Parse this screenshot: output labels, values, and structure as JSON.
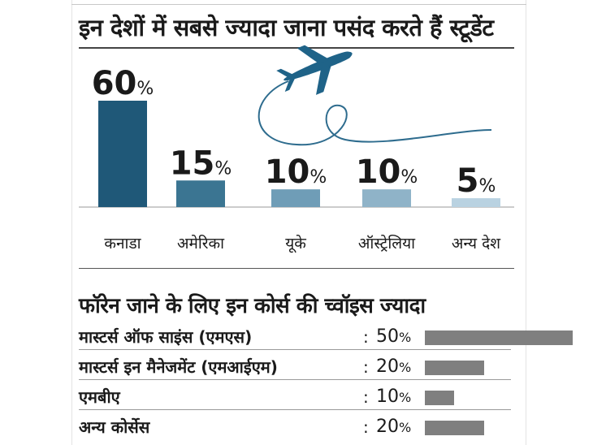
{
  "title": "इन देशों में सबसे ज्यादा जाना पसंद करते हैं स्टूडेंट",
  "subtitle": "फॉरेन जाने के लिए इन कोर्स की च्वॉइस ज्यादा",
  "icon": "airplane-icon",
  "chart_data": [
    {
      "type": "bar",
      "title": "इन देशों में सबसे ज्यादा जाना पसंद करते हैं स्टूडेंट",
      "categories": [
        "कनाडा",
        "अमेरिका",
        "यूके",
        "ऑस्ट्रेलिया",
        "अन्य देश"
      ],
      "values": [
        60,
        15,
        10,
        10,
        5
      ],
      "unit": "%",
      "colors": [
        "#1f5878",
        "#3b7592",
        "#6f9db7",
        "#8fb3c8",
        "#b9d2e1"
      ],
      "grid": false,
      "legend": "none"
    },
    {
      "type": "bar",
      "orientation": "horizontal",
      "title": "फॉरेन जाने के लिए इन कोर्स की च्वॉइस ज्यादा",
      "categories": [
        "मास्टर्स ऑफ साइंस (एमएस)",
        "मास्टर्स इन मैनेजमेंट (एमआईएम)",
        "एमबीए",
        "अन्य कोर्सेस"
      ],
      "values": [
        50,
        20,
        10,
        20
      ],
      "unit": "%",
      "color": "#7f7f7f",
      "grid": false,
      "legend": "none"
    }
  ]
}
